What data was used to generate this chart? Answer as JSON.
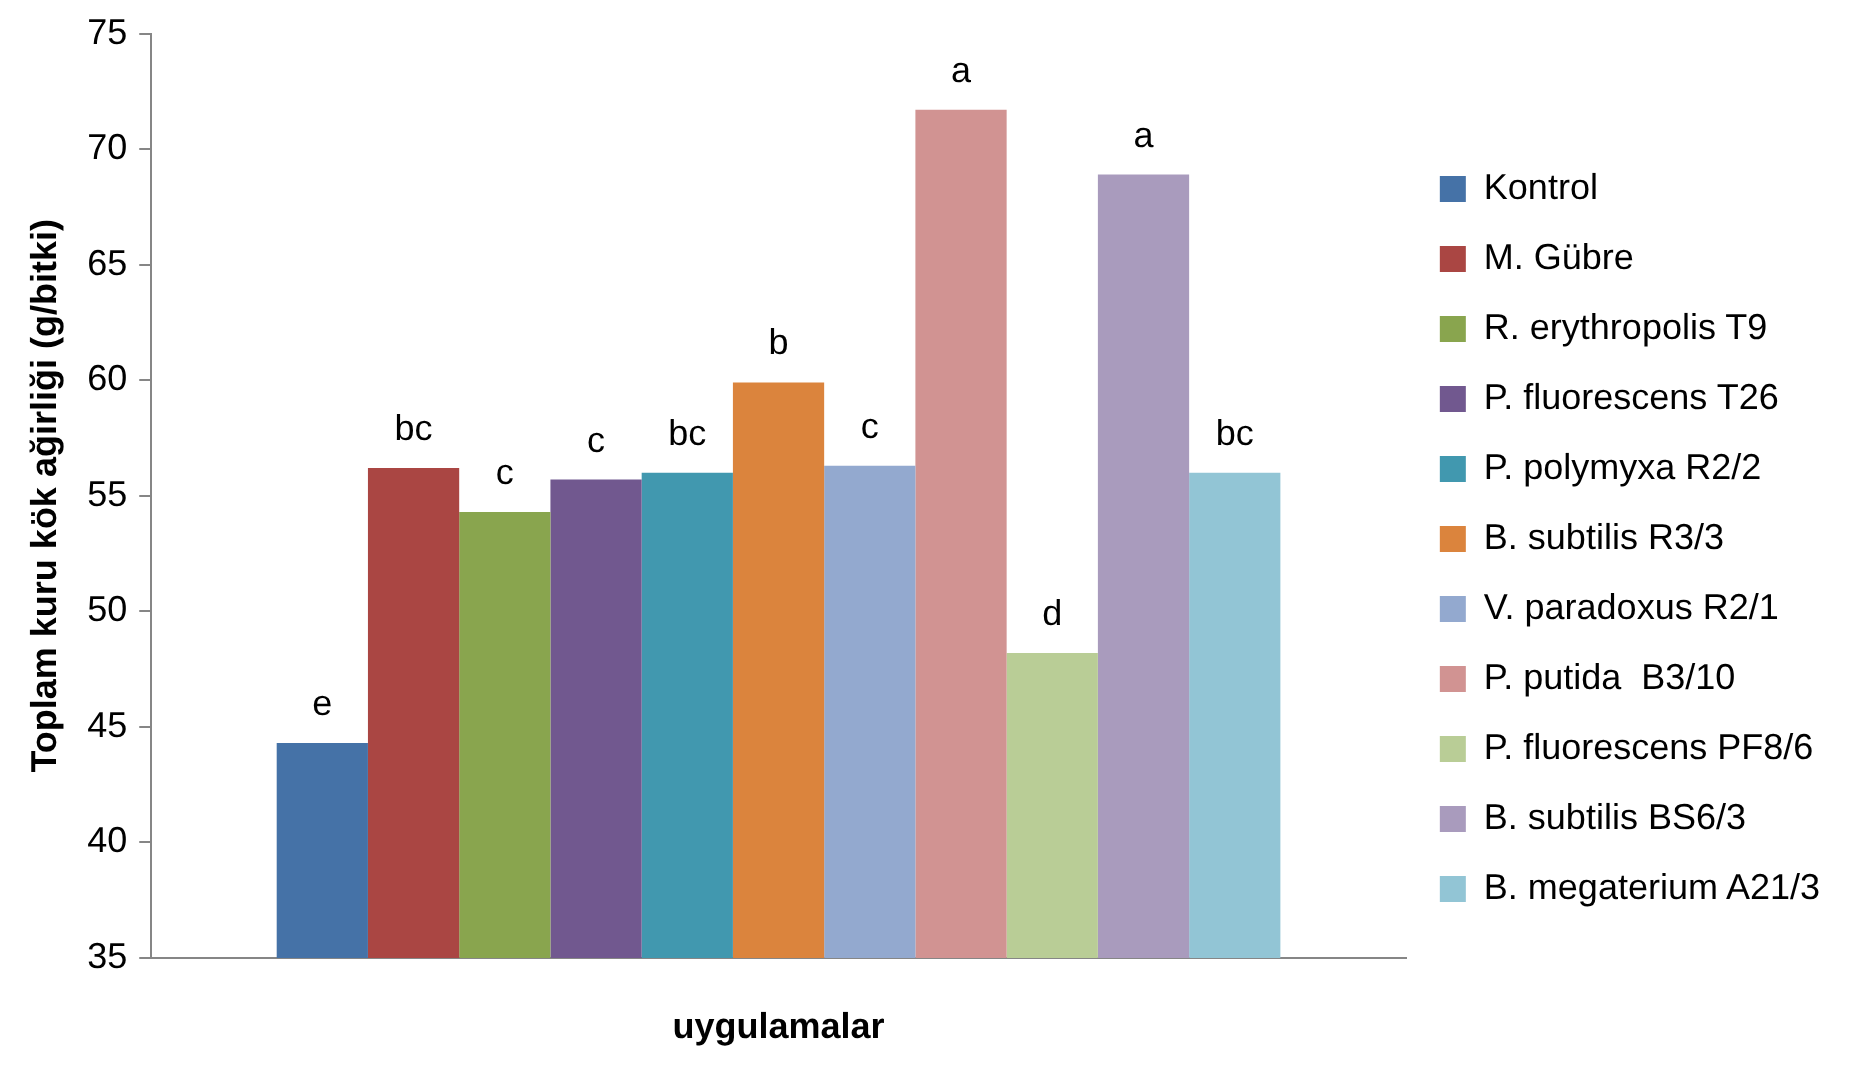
{
  "chart_data": {
    "type": "bar",
    "xlabel": "uygulamalar",
    "ylabel": "Toplam kuru kök ağirliği (g/bitki)",
    "categories": [
      null
    ],
    "ylim": [
      35,
      75
    ],
    "yticks": [
      35,
      40,
      45,
      50,
      55,
      60,
      65,
      70,
      75
    ],
    "grid": false,
    "legend": "right",
    "series": [
      {
        "name": "Kontrol",
        "color": "#4572a7",
        "values": [
          44.3
        ],
        "value_labels": [
          "e"
        ]
      },
      {
        "name": "M. Gübre",
        "color": "#aa4643",
        "values": [
          56.2
        ],
        "value_labels": [
          "bc"
        ]
      },
      {
        "name": "R. erythropolis T9",
        "color": "#89a54e",
        "values": [
          54.3
        ],
        "value_labels": [
          "c"
        ]
      },
      {
        "name": "P. fluorescens T26",
        "color": "#71588f",
        "values": [
          55.7
        ],
        "value_labels": [
          "c"
        ]
      },
      {
        "name": "P. polymyxa R2/2",
        "color": "#4198af",
        "values": [
          56.0
        ],
        "value_labels": [
          "bc"
        ]
      },
      {
        "name": "B. subtilis R3/3",
        "color": "#db843d",
        "values": [
          59.9
        ],
        "value_labels": [
          "b"
        ]
      },
      {
        "name": "V. paradoxus R2/1",
        "color": "#93a9cf",
        "values": [
          56.3
        ],
        "value_labels": [
          "c"
        ]
      },
      {
        "name": "P. putida  B3/10",
        "color": "#d19392",
        "values": [
          71.7
        ],
        "value_labels": [
          "a"
        ]
      },
      {
        "name": "P. fluorescens PF8/6",
        "color": "#b9cd96",
        "values": [
          48.2
        ],
        "value_labels": [
          "d"
        ]
      },
      {
        "name": "B. subtilis BS6/3",
        "color": "#a99bbd",
        "values": [
          68.9
        ],
        "value_labels": [
          "a"
        ]
      },
      {
        "name": "B. megaterium A21/3",
        "color": "#92c5d5",
        "values": [
          56.0
        ],
        "value_labels": [
          "bc"
        ]
      }
    ]
  }
}
